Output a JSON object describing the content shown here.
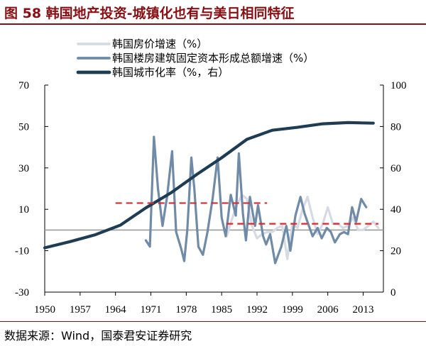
{
  "header": {
    "title": "图 58 韩国地产投资-城镇化也有与美日相同特征"
  },
  "footer": {
    "source": "数据来源：Wind，国泰君安证券研究"
  },
  "colors": {
    "title": "#8a0e12",
    "house_price": "#d5dbe4",
    "fixed_asset": "#6f8ba7",
    "urbanization": "#1e3d55",
    "reference_lines": "#e0262b",
    "zero_line": "#9a9a9a"
  },
  "chart_data": {
    "type": "line",
    "title": "",
    "legend_position": "top",
    "x_ticks": [
      "1950",
      "1957",
      "1964",
      "1971",
      "1978",
      "1985",
      "1992",
      "1999",
      "2006",
      "2013"
    ],
    "y_left": {
      "ticks": [
        "70",
        "50",
        "30",
        "10",
        "-10",
        "-30"
      ],
      "range": [
        -30,
        70
      ]
    },
    "y_right": {
      "ticks": [
        "100",
        "80",
        "60",
        "40",
        "20",
        "0"
      ],
      "range": [
        0,
        100
      ]
    },
    "series": [
      {
        "name": "韩国房价增速（%）",
        "axis": "left",
        "style": "light",
        "points": [
          [
            1986,
            -3
          ],
          [
            1987,
            5
          ],
          [
            1988,
            12
          ],
          [
            1989,
            17
          ],
          [
            1990,
            15
          ],
          [
            1991,
            2
          ],
          [
            1992,
            -4
          ],
          [
            1993,
            -2
          ],
          [
            1994,
            -1
          ],
          [
            1995,
            -1
          ],
          [
            1996,
            1
          ],
          [
            1997,
            2
          ],
          [
            1998,
            -14
          ],
          [
            1999,
            3
          ],
          [
            2000,
            1
          ],
          [
            2001,
            10
          ],
          [
            2002,
            16
          ],
          [
            2003,
            6
          ],
          [
            2004,
            -2
          ],
          [
            2005,
            3
          ],
          [
            2006,
            11
          ],
          [
            2007,
            3
          ],
          [
            2008,
            3
          ],
          [
            2009,
            1
          ],
          [
            2010,
            2
          ],
          [
            2011,
            6
          ],
          [
            2012,
            0
          ],
          [
            2013,
            0
          ],
          [
            2014,
            2
          ],
          [
            2015,
            4
          ],
          [
            2016,
            1
          ]
        ]
      },
      {
        "name": "韩国楼房建筑固定资本形成总额增速（%）",
        "axis": "left",
        "style": "medium",
        "points": [
          [
            1970,
            -5
          ],
          [
            1970.8,
            -8
          ],
          [
            1971.6,
            45
          ],
          [
            1972.4,
            20
          ],
          [
            1973.3,
            2
          ],
          [
            1974.2,
            16
          ],
          [
            1975.2,
            38
          ],
          [
            1976,
            -1
          ],
          [
            1977,
            -9
          ],
          [
            1977.6,
            -15
          ],
          [
            1978.2,
            0
          ],
          [
            1979,
            35
          ],
          [
            1979.6,
            20
          ],
          [
            1980.4,
            -8
          ],
          [
            1981.3,
            -12
          ],
          [
            1982.2,
            -1
          ],
          [
            1983.2,
            15
          ],
          [
            1984.2,
            35
          ],
          [
            1985,
            6
          ],
          [
            1985.8,
            -3
          ],
          [
            1986.8,
            17
          ],
          [
            1987.8,
            7
          ],
          [
            1988.4,
            37
          ],
          [
            1989.2,
            8
          ],
          [
            1989.8,
            -5
          ],
          [
            1990.6,
            16
          ],
          [
            1991.6,
            2
          ],
          [
            1992.2,
            12
          ],
          [
            1993.2,
            -3
          ],
          [
            1993.8,
            -7
          ],
          [
            1994.6,
            -2
          ],
          [
            1995.6,
            -16
          ],
          [
            1996.8,
            -8
          ],
          [
            1997.8,
            2
          ],
          [
            1998.6,
            -10
          ],
          [
            1999.6,
            7
          ],
          [
            2000.6,
            16
          ],
          [
            2001.4,
            8
          ],
          [
            2002.4,
            1
          ],
          [
            2003,
            -3
          ],
          [
            2004,
            1
          ],
          [
            2004.8,
            -4
          ],
          [
            2005.8,
            1
          ],
          [
            2006.6,
            -1
          ],
          [
            2007.4,
            -6
          ],
          [
            2008.4,
            -2
          ],
          [
            2009.2,
            -1
          ],
          [
            2010,
            -2
          ],
          [
            2010.8,
            11
          ],
          [
            2011.6,
            4
          ],
          [
            2012.6,
            15
          ],
          [
            2013.6,
            11
          ]
        ]
      },
      {
        "name": "韩国城市化率（%，右）",
        "axis": "right",
        "style": "dark",
        "points": [
          [
            1950,
            21.4
          ],
          [
            1955,
            24.4
          ],
          [
            1960,
            27.7
          ],
          [
            1965,
            32.4
          ],
          [
            1970,
            40.7
          ],
          [
            1975,
            48
          ],
          [
            1980,
            56.7
          ],
          [
            1985,
            64.9
          ],
          [
            1990,
            73.8
          ],
          [
            1995,
            78.2
          ],
          [
            2000,
            79.6
          ],
          [
            2005,
            81.3
          ],
          [
            2010,
            81.9
          ],
          [
            2015,
            81.6
          ]
        ]
      }
    ],
    "reference_lines": [
      {
        "x": [
          1964,
          1994
        ],
        "y": 13,
        "axis": "left",
        "style": "dashed"
      },
      {
        "x": [
          1986,
          2016
        ],
        "y": 3,
        "axis": "left",
        "style": "dashed"
      }
    ],
    "zero_line": {
      "y": 0,
      "axis": "left"
    }
  }
}
